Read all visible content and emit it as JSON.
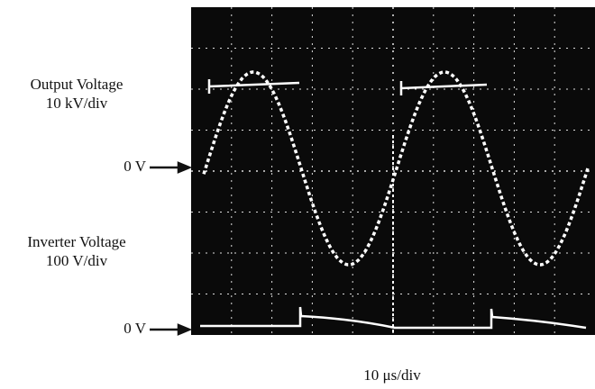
{
  "labels": {
    "output_title": "Output Voltage",
    "output_scale": "10 kV/div",
    "output_zero": "0 V",
    "inverter_title": "Inverter Voltage",
    "inverter_scale": "100 V/div",
    "inverter_zero": "0 V",
    "time_scale": "10 μs/div"
  }
}
